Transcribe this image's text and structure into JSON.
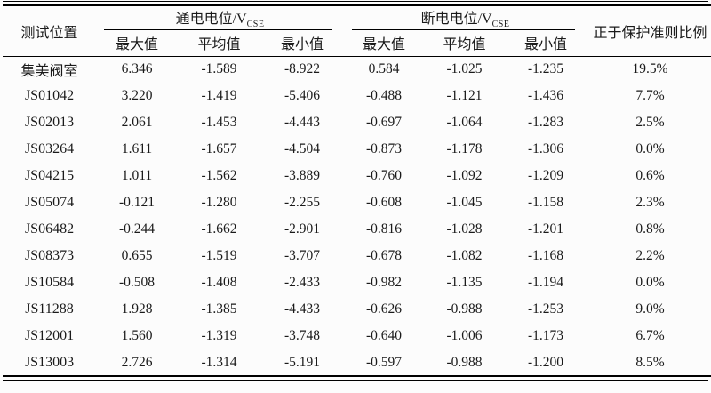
{
  "table": {
    "location_header": "测试位置",
    "ratio_header": "正于保护准则比例",
    "group_on": {
      "label": "通电电位/V",
      "subscript": "CSE"
    },
    "group_off": {
      "label": "断电电位/V",
      "subscript": "CSE"
    },
    "subheaders": [
      "最大值",
      "平均值",
      "最小值",
      "最大值",
      "平均值",
      "最小值"
    ],
    "rows": [
      {
        "location": "集美阀室",
        "values": [
          "6.346",
          "-1.589",
          "-8.922",
          "0.584",
          "-1.025",
          "-1.235",
          "19.5%"
        ]
      },
      {
        "location": "JS01042",
        "values": [
          "3.220",
          "-1.419",
          "-5.406",
          "-0.488",
          "-1.121",
          "-1.436",
          "7.7%"
        ]
      },
      {
        "location": "JS02013",
        "values": [
          "2.061",
          "-1.453",
          "-4.443",
          "-0.697",
          "-1.064",
          "-1.283",
          "2.5%"
        ]
      },
      {
        "location": "JS03264",
        "values": [
          "1.611",
          "-1.657",
          "-4.504",
          "-0.873",
          "-1.178",
          "-1.306",
          "0.0%"
        ]
      },
      {
        "location": "JS04215",
        "values": [
          "1.011",
          "-1.562",
          "-3.889",
          "-0.760",
          "-1.092",
          "-1.209",
          "0.6%"
        ]
      },
      {
        "location": "JS05074",
        "values": [
          "-0.121",
          "-1.280",
          "-2.255",
          "-0.608",
          "-1.045",
          "-1.158",
          "2.3%"
        ]
      },
      {
        "location": "JS06482",
        "values": [
          "-0.244",
          "-1.662",
          "-2.901",
          "-0.816",
          "-1.028",
          "-1.201",
          "0.8%"
        ]
      },
      {
        "location": "JS08373",
        "values": [
          "0.655",
          "-1.519",
          "-3.707",
          "-0.678",
          "-1.082",
          "-1.168",
          "2.2%"
        ]
      },
      {
        "location": "JS10584",
        "values": [
          "-0.508",
          "-1.408",
          "-2.433",
          "-0.982",
          "-1.135",
          "-1.194",
          "0.0%"
        ]
      },
      {
        "location": "JS11288",
        "values": [
          "1.928",
          "-1.385",
          "-4.433",
          "-0.626",
          "-0.988",
          "-1.253",
          "9.0%"
        ]
      },
      {
        "location": "JS12001",
        "values": [
          "1.560",
          "-1.319",
          "-3.748",
          "-0.640",
          "-1.006",
          "-1.173",
          "6.7%"
        ]
      },
      {
        "location": "JS13003",
        "values": [
          "2.726",
          "-1.314",
          "-5.191",
          "-0.597",
          "-0.988",
          "-1.200",
          "8.5%"
        ]
      }
    ],
    "colors": {
      "line": "#000000",
      "text": "#1a1a1a",
      "background": "#fcfcfc"
    }
  }
}
